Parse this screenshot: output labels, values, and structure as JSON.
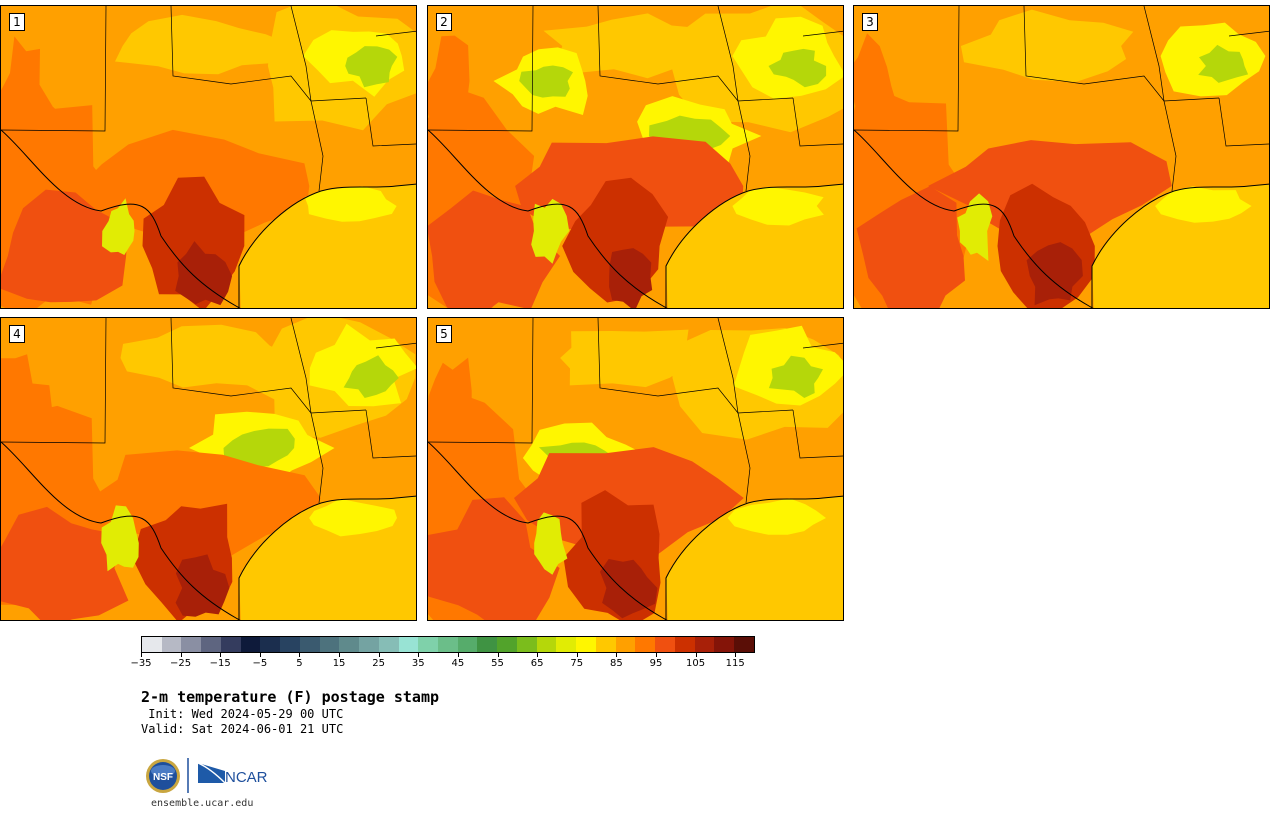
{
  "panels": [
    {
      "label": "1",
      "variant": 1
    },
    {
      "label": "2",
      "variant": 2
    },
    {
      "label": "3",
      "variant": 3
    },
    {
      "label": "4",
      "variant": 4
    },
    {
      "label": "5",
      "variant": 5
    }
  ],
  "colorbar": {
    "colors": [
      "#e6e8ec",
      "#b6b9c5",
      "#8a8fa3",
      "#5e6580",
      "#343c5e",
      "#0e1a3a",
      "#1b2e4e",
      "#284361",
      "#3a5a6f",
      "#4d727d",
      "#5f8a8c",
      "#74a3a2",
      "#86bdb6",
      "#98e3d4",
      "#7fd1aa",
      "#6bbe89",
      "#56ac6b",
      "#3f9343",
      "#52a32b",
      "#7bbd1c",
      "#b5d70a",
      "#e1ec04",
      "#fff600",
      "#ffc800",
      "#ffa000",
      "#ff7800",
      "#f05010",
      "#cc3000",
      "#a82008",
      "#841408",
      "#5a0e06"
    ],
    "tick_values": [
      "−35",
      "−25",
      "−15",
      "−5",
      "5",
      "15",
      "25",
      "35",
      "45",
      "55",
      "65",
      "75",
      "85",
      "95",
      "105",
      "115"
    ],
    "range": [
      -35,
      120
    ]
  },
  "title": "2-m temperature (F) postage stamp",
  "init": " Init: Wed 2024-05-29 00 UTC",
  "valid": "Valid: Sat 2024-06-01 21 UTC",
  "logos": {
    "nsf": "NSF",
    "ncar": "NCAR"
  },
  "site": "ensemble.ucar.edu"
}
